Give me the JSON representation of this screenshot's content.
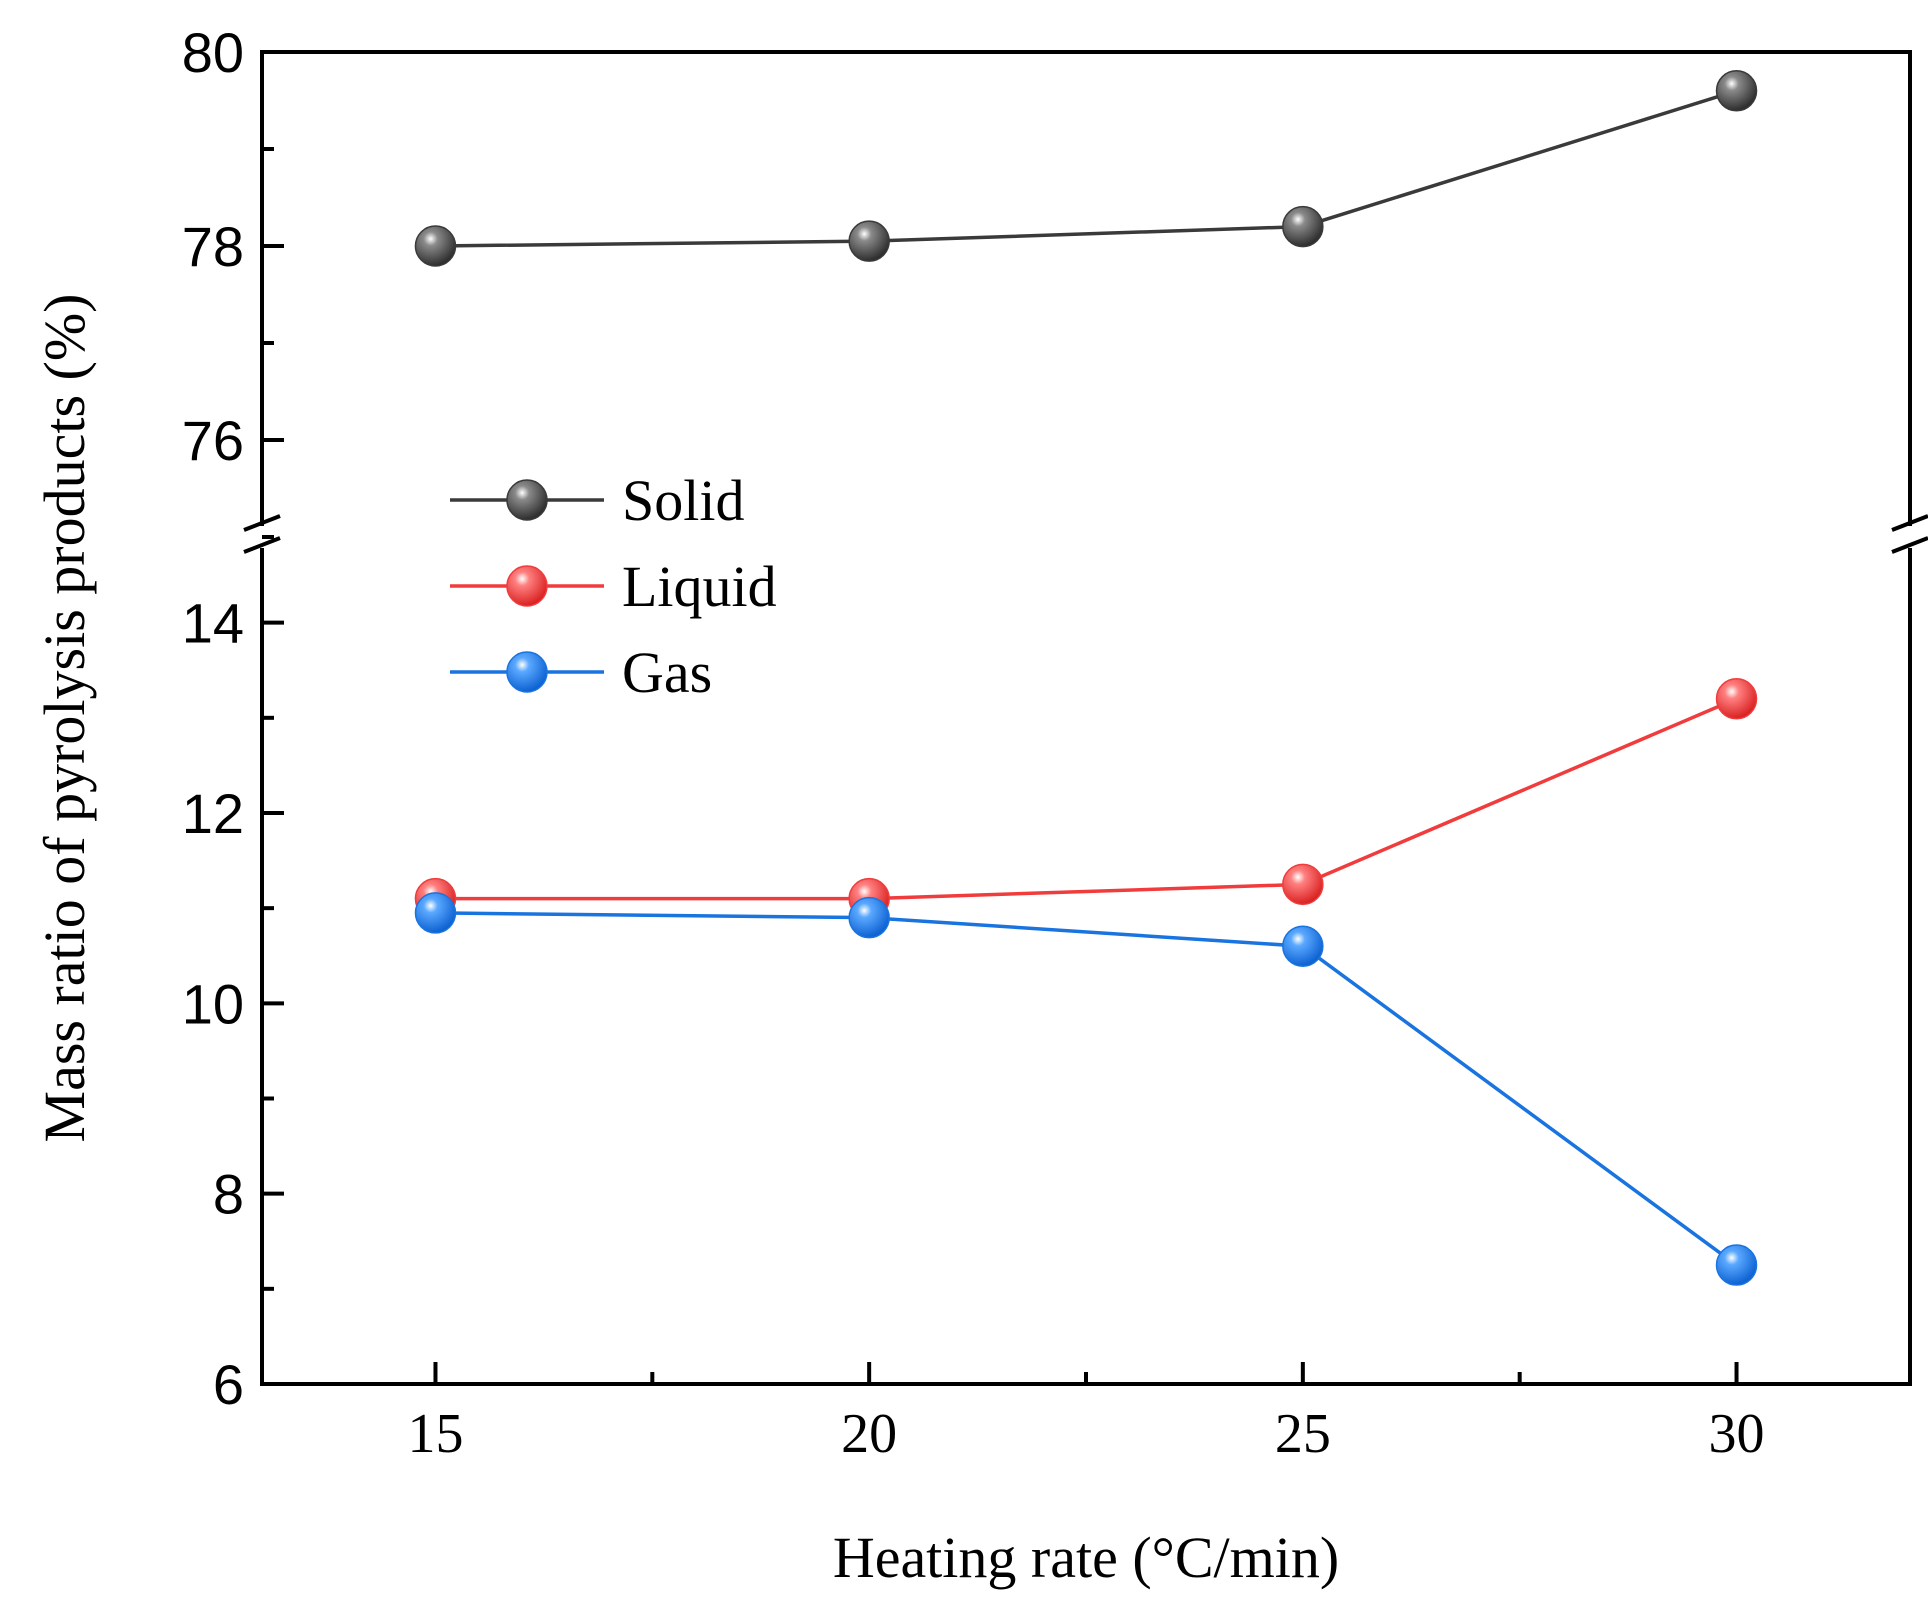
{
  "chart_data": {
    "type": "line",
    "title": "",
    "xlabel": "Heating rate (°C/min)",
    "ylabel": "Mass ratio of pyrolysis products (%)",
    "x": [
      15,
      20,
      25,
      30
    ],
    "xlim": [
      13,
      32
    ],
    "x_ticks": [
      "15",
      "20",
      "25",
      "30"
    ],
    "y_axis_break": true,
    "ylim_upper": [
      75,
      80
    ],
    "ylim_lower": [
      6,
      14.9
    ],
    "y_ticks_upper": [
      "76",
      "78",
      "80"
    ],
    "y_ticks_lower": [
      "6",
      "8",
      "10",
      "12",
      "14"
    ],
    "legend_position": "upper-left",
    "series": [
      {
        "name": "Solid",
        "segment": "upper",
        "color": "#3a3a3a",
        "marker": "sphere",
        "values": [
          78.0,
          78.05,
          78.2,
          79.6
        ]
      },
      {
        "name": "Liquid",
        "segment": "lower",
        "color": "#f03c3c",
        "marker": "sphere",
        "values": [
          11.1,
          11.1,
          11.25,
          13.2
        ]
      },
      {
        "name": "Gas",
        "segment": "lower",
        "color": "#1a74e0",
        "marker": "sphere",
        "values": [
          10.95,
          10.9,
          10.6,
          7.25
        ]
      }
    ]
  }
}
